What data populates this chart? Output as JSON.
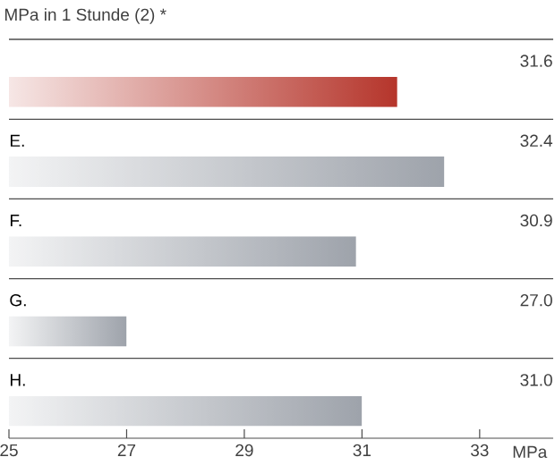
{
  "chart_data": {
    "type": "bar",
    "orientation": "horizontal",
    "title": "MPa in 1 Stunde (2) *",
    "xlabel": "MPa",
    "categories": [
      null,
      "E.",
      "F.",
      "G.",
      "H."
    ],
    "values": [
      31.6,
      32.4,
      30.9,
      27.0,
      31.0
    ],
    "colors": [
      "#b5352b",
      "#9ea3ab",
      "#9ea3ab",
      "#9ea3ab",
      "#9ea3ab"
    ],
    "value_labels": [
      "31.6",
      "32.4",
      "30.9",
      "27.0",
      "31.0"
    ],
    "xlim": [
      25,
      34.25
    ],
    "xticks": [
      25,
      27,
      29,
      31,
      33
    ]
  }
}
